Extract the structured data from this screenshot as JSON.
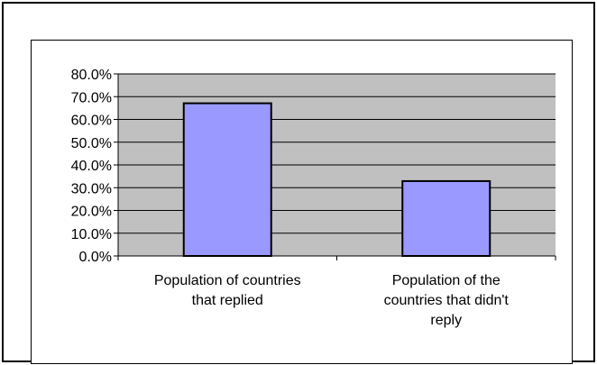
{
  "chart_data": {
    "type": "bar",
    "title": "",
    "xlabel": "",
    "ylabel": "",
    "categories": [
      [
        "Population of countries",
        "that replied"
      ],
      [
        "Population of the",
        "countries that didn't",
        "reply"
      ]
    ],
    "values": [
      0.671,
      0.329
    ],
    "ylim": [
      0,
      0.8
    ],
    "yticks": [
      0,
      0.1,
      0.2,
      0.3,
      0.4,
      0.5,
      0.6,
      0.7,
      0.8
    ],
    "ytick_labels": [
      "0.0%",
      "10.0%",
      "20.0%",
      "30.0%",
      "40.0%",
      "50.0%",
      "60.0%",
      "70.0%",
      "80.0%"
    ],
    "grid": true,
    "legend": "none",
    "colors": {
      "plot_background": "#c0c0c0",
      "bar_fill": "#9999ff",
      "bar_stroke": "#000000",
      "gridline": "#000000"
    }
  }
}
